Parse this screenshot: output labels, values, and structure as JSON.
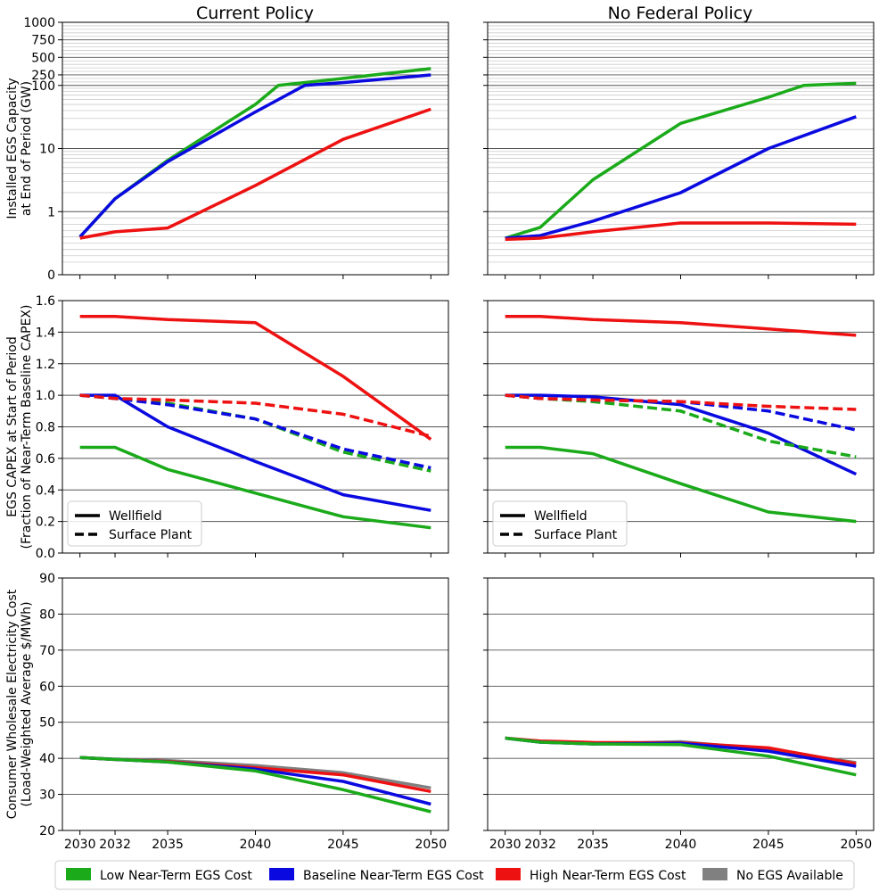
{
  "colors": {
    "Low Near-Term EGS Cost": "#1aaa1a",
    "Baseline Near-Term EGS Cost": "#0a0ae0",
    "High Near-Term EGS Cost": "#ee1111",
    "No EGS Available": "#808080"
  },
  "legend": {
    "scenarios": [
      "Low Near-Term EGS Cost",
      "Baseline Near-Term EGS Cost",
      "High Near-Term EGS Cost",
      "No EGS Available"
    ],
    "line_styles": [
      "Wellfield",
      "Surface Plant"
    ]
  },
  "chart_data": [
    {
      "id": "cap_current",
      "type": "line",
      "column_title": "Current Policy",
      "ylabel": [
        "Installed EGS Capacity",
        "at End of Period (GW)"
      ],
      "yscale": "symlog",
      "yticks": [
        0,
        1,
        10,
        100,
        250,
        500,
        750,
        1000
      ],
      "ytick_labels": [
        "0",
        "1",
        "10",
        "100",
        "250",
        "500",
        "750",
        "1000"
      ],
      "ylim": [
        0,
        1000
      ],
      "xticks": [
        2030,
        2032,
        2035,
        2040,
        2045,
        2050
      ],
      "series": [
        {
          "name": "Low Near-Term EGS Cost",
          "style": "solid",
          "x": [
            2030,
            2032,
            2035,
            2040,
            2041.3,
            2045,
            2050
          ],
          "values": [
            0.6,
            1.6,
            6.5,
            50,
            100,
            200,
            340
          ]
        },
        {
          "name": "Baseline Near-Term EGS Cost",
          "style": "solid",
          "x": [
            2030,
            2032,
            2035,
            2040,
            2042.8,
            2045,
            2050
          ],
          "values": [
            0.6,
            1.6,
            6.2,
            38,
            100,
            140,
            250
          ]
        },
        {
          "name": "High Near-Term EGS Cost",
          "style": "solid",
          "x": [
            2030,
            2032,
            2035,
            2040,
            2045,
            2050
          ],
          "values": [
            0.58,
            0.68,
            0.74,
            2.6,
            14,
            42
          ]
        }
      ]
    },
    {
      "id": "cap_nofed",
      "type": "line",
      "column_title": "No Federal Policy",
      "yscale": "symlog",
      "yticks": [
        0,
        1,
        10,
        100,
        250,
        500,
        750,
        1000
      ],
      "ylim": [
        0,
        1000
      ],
      "xticks": [
        2030,
        2032,
        2035,
        2040,
        2045,
        2050
      ],
      "series": [
        {
          "name": "Low Near-Term EGS Cost",
          "style": "solid",
          "x": [
            2030,
            2032,
            2035,
            2040,
            2045,
            2047,
            2050
          ],
          "values": [
            0.58,
            0.75,
            3.2,
            25,
            65,
            100,
            130
          ]
        },
        {
          "name": "Baseline Near-Term EGS Cost",
          "style": "solid",
          "x": [
            2030,
            2032,
            2035,
            2040,
            2045,
            2050
          ],
          "values": [
            0.58,
            0.62,
            0.85,
            2,
            10,
            32
          ]
        },
        {
          "name": "High Near-Term EGS Cost",
          "style": "solid",
          "x": [
            2030,
            2032,
            2035,
            2040,
            2045,
            2050
          ],
          "values": [
            0.56,
            0.58,
            0.68,
            0.82,
            0.82,
            0.8
          ]
        }
      ]
    },
    {
      "id": "capex_current",
      "type": "line",
      "ylabel": [
        "EGS CAPEX at Start of Period",
        "(Fraction of Near-Term Baseline CAPEX)"
      ],
      "ylim": [
        0,
        1.6
      ],
      "yticks": [
        0,
        0.2,
        0.4,
        0.6,
        0.8,
        1.0,
        1.2,
        1.4,
        1.6
      ],
      "ytick_labels": [
        "0.0",
        "0.2",
        "0.4",
        "0.6",
        "0.8",
        "1.0",
        "1.2",
        "1.4",
        "1.6"
      ],
      "xticks": [
        2030,
        2032,
        2035,
        2040,
        2045,
        2050
      ],
      "series": [
        {
          "name": "Low Near-Term EGS Cost",
          "style": "solid",
          "x": [
            2030,
            2032,
            2035,
            2040,
            2045,
            2050
          ],
          "values": [
            0.67,
            0.67,
            0.53,
            0.38,
            0.23,
            0.16
          ]
        },
        {
          "name": "Baseline Near-Term EGS Cost",
          "style": "solid",
          "x": [
            2030,
            2032,
            2035,
            2040,
            2045,
            2050
          ],
          "values": [
            1.0,
            1.0,
            0.8,
            0.58,
            0.37,
            0.27
          ]
        },
        {
          "name": "High Near-Term EGS Cost",
          "style": "solid",
          "x": [
            2030,
            2032,
            2035,
            2040,
            2045,
            2050
          ],
          "values": [
            1.5,
            1.5,
            1.48,
            1.46,
            1.12,
            0.72
          ]
        },
        {
          "name": "Low Near-Term EGS Cost",
          "style": "dashed",
          "x": [
            2030,
            2032,
            2035,
            2040,
            2045,
            2050
          ],
          "values": [
            1.0,
            0.98,
            0.95,
            0.85,
            0.64,
            0.52
          ]
        },
        {
          "name": "Baseline Near-Term EGS Cost",
          "style": "dashed",
          "x": [
            2030,
            2032,
            2035,
            2040,
            2045,
            2050
          ],
          "values": [
            1.0,
            0.98,
            0.94,
            0.85,
            0.66,
            0.54
          ]
        },
        {
          "name": "High Near-Term EGS Cost",
          "style": "dashed",
          "x": [
            2030,
            2032,
            2035,
            2040,
            2045,
            2050
          ],
          "values": [
            1.0,
            0.98,
            0.97,
            0.95,
            0.88,
            0.74
          ]
        }
      ]
    },
    {
      "id": "capex_nofed",
      "type": "line",
      "ylim": [
        0,
        1.6
      ],
      "yticks": [
        0,
        0.2,
        0.4,
        0.6,
        0.8,
        1.0,
        1.2,
        1.4,
        1.6
      ],
      "xticks": [
        2030,
        2032,
        2035,
        2040,
        2045,
        2050
      ],
      "series": [
        {
          "name": "Low Near-Term EGS Cost",
          "style": "solid",
          "x": [
            2030,
            2032,
            2035,
            2040,
            2045,
            2050
          ],
          "values": [
            0.67,
            0.67,
            0.63,
            0.44,
            0.26,
            0.2
          ]
        },
        {
          "name": "Baseline Near-Term EGS Cost",
          "style": "solid",
          "x": [
            2030,
            2032,
            2035,
            2040,
            2045,
            2050
          ],
          "values": [
            1.0,
            1.0,
            0.99,
            0.94,
            0.76,
            0.5
          ]
        },
        {
          "name": "High Near-Term EGS Cost",
          "style": "solid",
          "x": [
            2030,
            2032,
            2035,
            2040,
            2045,
            2050
          ],
          "values": [
            1.5,
            1.5,
            1.48,
            1.46,
            1.42,
            1.38
          ]
        },
        {
          "name": "Low Near-Term EGS Cost",
          "style": "dashed",
          "x": [
            2030,
            2032,
            2035,
            2040,
            2045,
            2050
          ],
          "values": [
            1.0,
            0.98,
            0.96,
            0.9,
            0.71,
            0.61
          ]
        },
        {
          "name": "Baseline Near-Term EGS Cost",
          "style": "dashed",
          "x": [
            2030,
            2032,
            2035,
            2040,
            2045,
            2050
          ],
          "values": [
            1.0,
            0.98,
            0.97,
            0.96,
            0.9,
            0.78
          ]
        },
        {
          "name": "High Near-Term EGS Cost",
          "style": "dashed",
          "x": [
            2030,
            2032,
            2035,
            2040,
            2045,
            2050
          ],
          "values": [
            1.0,
            0.98,
            0.97,
            0.96,
            0.93,
            0.91
          ]
        }
      ]
    },
    {
      "id": "price_current",
      "type": "line",
      "ylabel": [
        "Consumer Wholesale Electricity Cost",
        "(Load-Weighted Average $/MWh)"
      ],
      "ylim": [
        20,
        90
      ],
      "yticks": [
        20,
        30,
        40,
        50,
        60,
        70,
        80,
        90
      ],
      "ytick_labels": [
        "20",
        "30",
        "40",
        "50",
        "60",
        "70",
        "80",
        "90"
      ],
      "xticks": [
        2030,
        2032,
        2035,
        2040,
        2045,
        2050
      ],
      "xtick_labels": [
        "2030",
        "2032",
        "2035",
        "2040",
        "2045",
        "2050"
      ],
      "series": [
        {
          "name": "No EGS Available",
          "style": "solid",
          "x": [
            2030,
            2032,
            2035,
            2040,
            2045,
            2050
          ],
          "values": [
            40.2,
            39.8,
            39.4,
            38,
            36,
            31.8
          ]
        },
        {
          "name": "High Near-Term EGS Cost",
          "style": "solid",
          "x": [
            2030,
            2032,
            2035,
            2040,
            2045,
            2050
          ],
          "values": [
            40.2,
            39.7,
            39.1,
            37.4,
            35.4,
            30.8
          ]
        },
        {
          "name": "Baseline Near-Term EGS Cost",
          "style": "solid",
          "x": [
            2030,
            2032,
            2035,
            2040,
            2045,
            2050
          ],
          "values": [
            40.2,
            39.7,
            39.0,
            37.0,
            33.6,
            27.3
          ]
        },
        {
          "name": "Low Near-Term EGS Cost",
          "style": "solid",
          "x": [
            2030,
            2032,
            2035,
            2040,
            2045,
            2050
          ],
          "values": [
            40.2,
            39.7,
            39.0,
            36.5,
            31.3,
            25.2
          ]
        }
      ]
    },
    {
      "id": "price_nofed",
      "type": "line",
      "ylim": [
        20,
        90
      ],
      "yticks": [
        20,
        30,
        40,
        50,
        60,
        70,
        80,
        90
      ],
      "xticks": [
        2030,
        2032,
        2035,
        2040,
        2045,
        2050
      ],
      "xtick_labels": [
        "2030",
        "2032",
        "2035",
        "2040",
        "2045",
        "2050"
      ],
      "series": [
        {
          "name": "No EGS Available",
          "style": "solid",
          "x": [
            2030,
            2032,
            2035,
            2040,
            2045,
            2050
          ],
          "values": [
            45.6,
            44.5,
            44.0,
            44.6,
            42.5,
            38.8
          ]
        },
        {
          "name": "High Near-Term EGS Cost",
          "style": "solid",
          "x": [
            2030,
            2032,
            2035,
            2040,
            2045,
            2050
          ],
          "values": [
            45.6,
            44.8,
            44.4,
            44.3,
            42.9,
            38.5
          ]
        },
        {
          "name": "Baseline Near-Term EGS Cost",
          "style": "solid",
          "x": [
            2030,
            2032,
            2035,
            2040,
            2045,
            2050
          ],
          "values": [
            45.6,
            44.5,
            44.0,
            44.2,
            42.0,
            37.8
          ]
        },
        {
          "name": "Low Near-Term EGS Cost",
          "style": "solid",
          "x": [
            2030,
            2032,
            2035,
            2040,
            2045,
            2050
          ],
          "values": [
            45.6,
            44.5,
            44.0,
            43.8,
            40.6,
            35.4
          ]
        }
      ]
    }
  ]
}
